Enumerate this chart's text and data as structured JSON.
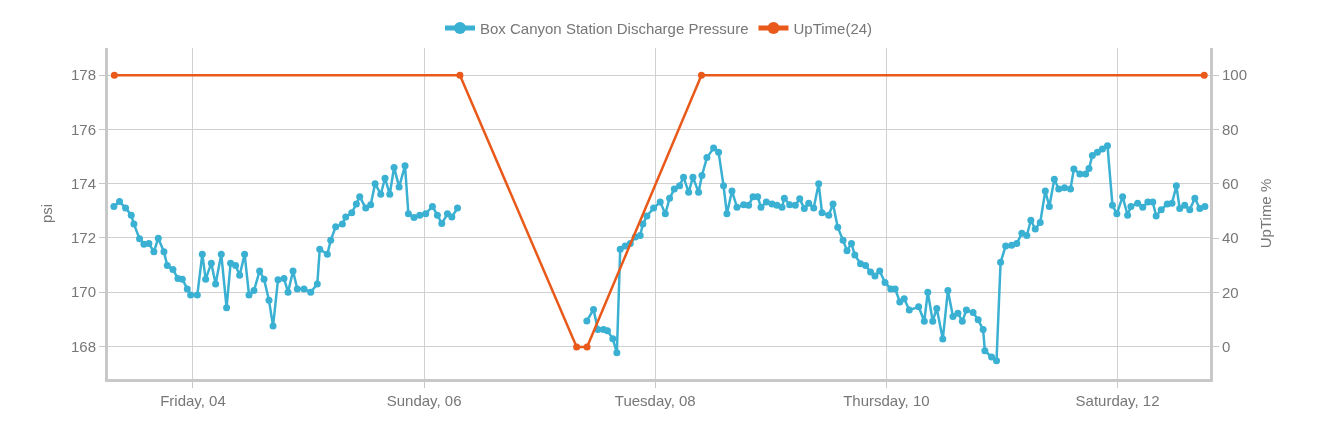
{
  "chart_data": {
    "type": "line",
    "ylabel": "psi",
    "y2label": "UpTime %",
    "xlim": [
      3.265,
      12.8
    ],
    "xticks": [
      {
        "value": 4,
        "label": "Friday, 04"
      },
      {
        "value": 6,
        "label": "Sunday, 06"
      },
      {
        "value": 8,
        "label": "Tuesday, 08"
      },
      {
        "value": 10,
        "label": "Thursday, 10"
      },
      {
        "value": 12,
        "label": "Saturday, 12"
      }
    ],
    "ylim": [
      166.8,
      179
    ],
    "yticks": [
      168,
      170,
      172,
      174,
      176,
      178
    ],
    "y2lim": [
      -11.8,
      110
    ],
    "y2ticks": [
      0,
      20,
      40,
      60,
      80,
      100
    ],
    "grid": true,
    "legend": "top",
    "marker": "circle",
    "line_style": "solid",
    "series": [
      {
        "name": "Box Canyon Station Discharge Pressure",
        "color": "#3ab0d2",
        "x": [
          3.316,
          3.365,
          3.417,
          3.466,
          3.489,
          3.538,
          3.576,
          3.619,
          3.662,
          3.7,
          3.749,
          3.778,
          3.827,
          3.87,
          3.908,
          3.951,
          3.98,
          4.038,
          4.081,
          4.11,
          4.159,
          4.196,
          4.245,
          4.291,
          4.326,
          4.369,
          4.404,
          4.447,
          4.485,
          4.528,
          4.577,
          4.615,
          4.658,
          4.693,
          4.736,
          4.788,
          4.823,
          4.866,
          4.903,
          4.961,
          5.019,
          5.076,
          5.097,
          5.163,
          5.192,
          5.235,
          5.293,
          5.322,
          5.374,
          5.414,
          5.443,
          5.495,
          5.538,
          5.576,
          5.625,
          5.662,
          5.703,
          5.74,
          5.784,
          5.835,
          5.864,
          5.913,
          5.962,
          6.014,
          6.072,
          6.115,
          6.153,
          6.202,
          6.24,
          6.289,
          6.85,
          7.408,
          7.466,
          7.504,
          7.553,
          7.587,
          7.633,
          7.668,
          7.697,
          7.74,
          7.784,
          7.827,
          7.87,
          7.893,
          7.928,
          7.986,
          8.043,
          8.087,
          8.124,
          8.165,
          8.211,
          8.245,
          8.289,
          8.326,
          8.375,
          8.404,
          8.447,
          8.505,
          8.548,
          8.591,
          8.62,
          8.664,
          8.707,
          8.765,
          8.808,
          8.846,
          8.886,
          8.915,
          8.961,
          9.01,
          9.053,
          9.097,
          9.117,
          9.163,
          9.212,
          9.25,
          9.29,
          9.328,
          9.371,
          9.414,
          9.443,
          9.501,
          9.538,
          9.579,
          9.625,
          9.659,
          9.698,
          9.727,
          9.776,
          9.82,
          9.863,
          9.901,
          9.942,
          9.988,
          10.038,
          10.076,
          10.116,
          10.154,
          10.198,
          10.279,
          10.328,
          10.358,
          10.401,
          10.436,
          10.488,
          10.532,
          10.576,
          10.619,
          10.657,
          10.692,
          10.75,
          10.794,
          10.837,
          10.852,
          10.91,
          10.953,
          10.988,
          11.032,
          11.084,
          11.128,
          11.172,
          11.215,
          11.25,
          11.288,
          11.331,
          11.375,
          11.41,
          11.453,
          11.491,
          11.541,
          11.593,
          11.622,
          11.674,
          11.724,
          11.753,
          11.782,
          11.826,
          11.869,
          11.913,
          11.956,
          11.994,
          12.044,
          12.087,
          12.116,
          12.174,
          12.218,
          12.262,
          12.305,
          12.334,
          12.378,
          12.43,
          12.471,
          12.509,
          12.538,
          12.581,
          12.625,
          12.669,
          12.712,
          12.756
        ],
        "values": [
          173.16,
          173.34,
          173.1,
          172.84,
          172.51,
          171.97,
          171.77,
          171.79,
          171.49,
          171.99,
          171.49,
          170.98,
          170.84,
          170.5,
          170.48,
          170.12,
          169.9,
          169.9,
          171.4,
          170.48,
          171.07,
          170.3,
          171.4,
          169.43,
          171.07,
          170.98,
          170.62,
          171.4,
          169.9,
          170.06,
          170.78,
          170.48,
          169.7,
          168.75,
          170.46,
          170.5,
          170.0,
          170.78,
          170.12,
          170.12,
          170.0,
          170.3,
          171.58,
          171.4,
          171.91,
          172.41,
          172.51,
          172.77,
          172.93,
          173.25,
          173.52,
          173.1,
          173.22,
          174.0,
          173.61,
          174.2,
          173.61,
          174.6,
          173.88,
          174.66,
          172.89,
          172.75,
          172.84,
          172.89,
          173.16,
          172.84,
          172.53,
          172.89,
          172.77,
          173.1,
          null,
          168.94,
          169.36,
          168.62,
          168.62,
          168.58,
          168.28,
          167.77,
          171.58,
          171.7,
          171.79,
          172.03,
          172.09,
          172.51,
          172.81,
          173.1,
          173.32,
          172.89,
          173.46,
          173.8,
          173.92,
          174.24,
          173.68,
          174.24,
          173.68,
          174.3,
          174.96,
          175.31,
          175.16,
          173.92,
          172.89,
          173.73,
          173.13,
          173.22,
          173.2,
          173.52,
          173.52,
          173.13,
          173.32,
          173.25,
          173.2,
          173.13,
          173.46,
          173.22,
          173.2,
          173.44,
          173.08,
          173.28,
          173.1,
          174.0,
          172.93,
          172.84,
          173.25,
          172.39,
          171.91,
          171.53,
          171.79,
          171.37,
          171.05,
          170.98,
          170.74,
          170.6,
          170.78,
          170.36,
          170.12,
          170.12,
          169.64,
          169.76,
          169.34,
          169.46,
          168.93,
          170.0,
          168.93,
          169.4,
          168.27,
          170.06,
          169.1,
          169.22,
          168.93,
          169.34,
          169.25,
          168.98,
          168.62,
          167.84,
          167.61,
          167.47,
          171.1,
          171.7,
          171.73,
          171.79,
          172.17,
          172.09,
          172.65,
          172.33,
          172.57,
          173.73,
          173.16,
          174.16,
          173.8,
          173.85,
          173.8,
          174.54,
          174.36,
          174.36,
          174.56,
          175.04,
          175.16,
          175.28,
          175.4,
          173.2,
          172.89,
          173.52,
          172.84,
          173.16,
          173.28,
          173.13,
          173.32,
          173.32,
          172.81,
          173.04,
          173.25,
          173.28,
          173.92,
          173.08,
          173.2,
          173.04,
          173.46,
          173.08,
          173.16
        ]
      },
      {
        "name": "UpTime(24)",
        "color": "#e8591a",
        "axis": "y2",
        "x": [
          3.32,
          6.31,
          7.32,
          7.41,
          8.4,
          12.75
        ],
        "values": [
          100,
          100,
          0,
          0,
          100,
          100
        ]
      }
    ]
  }
}
